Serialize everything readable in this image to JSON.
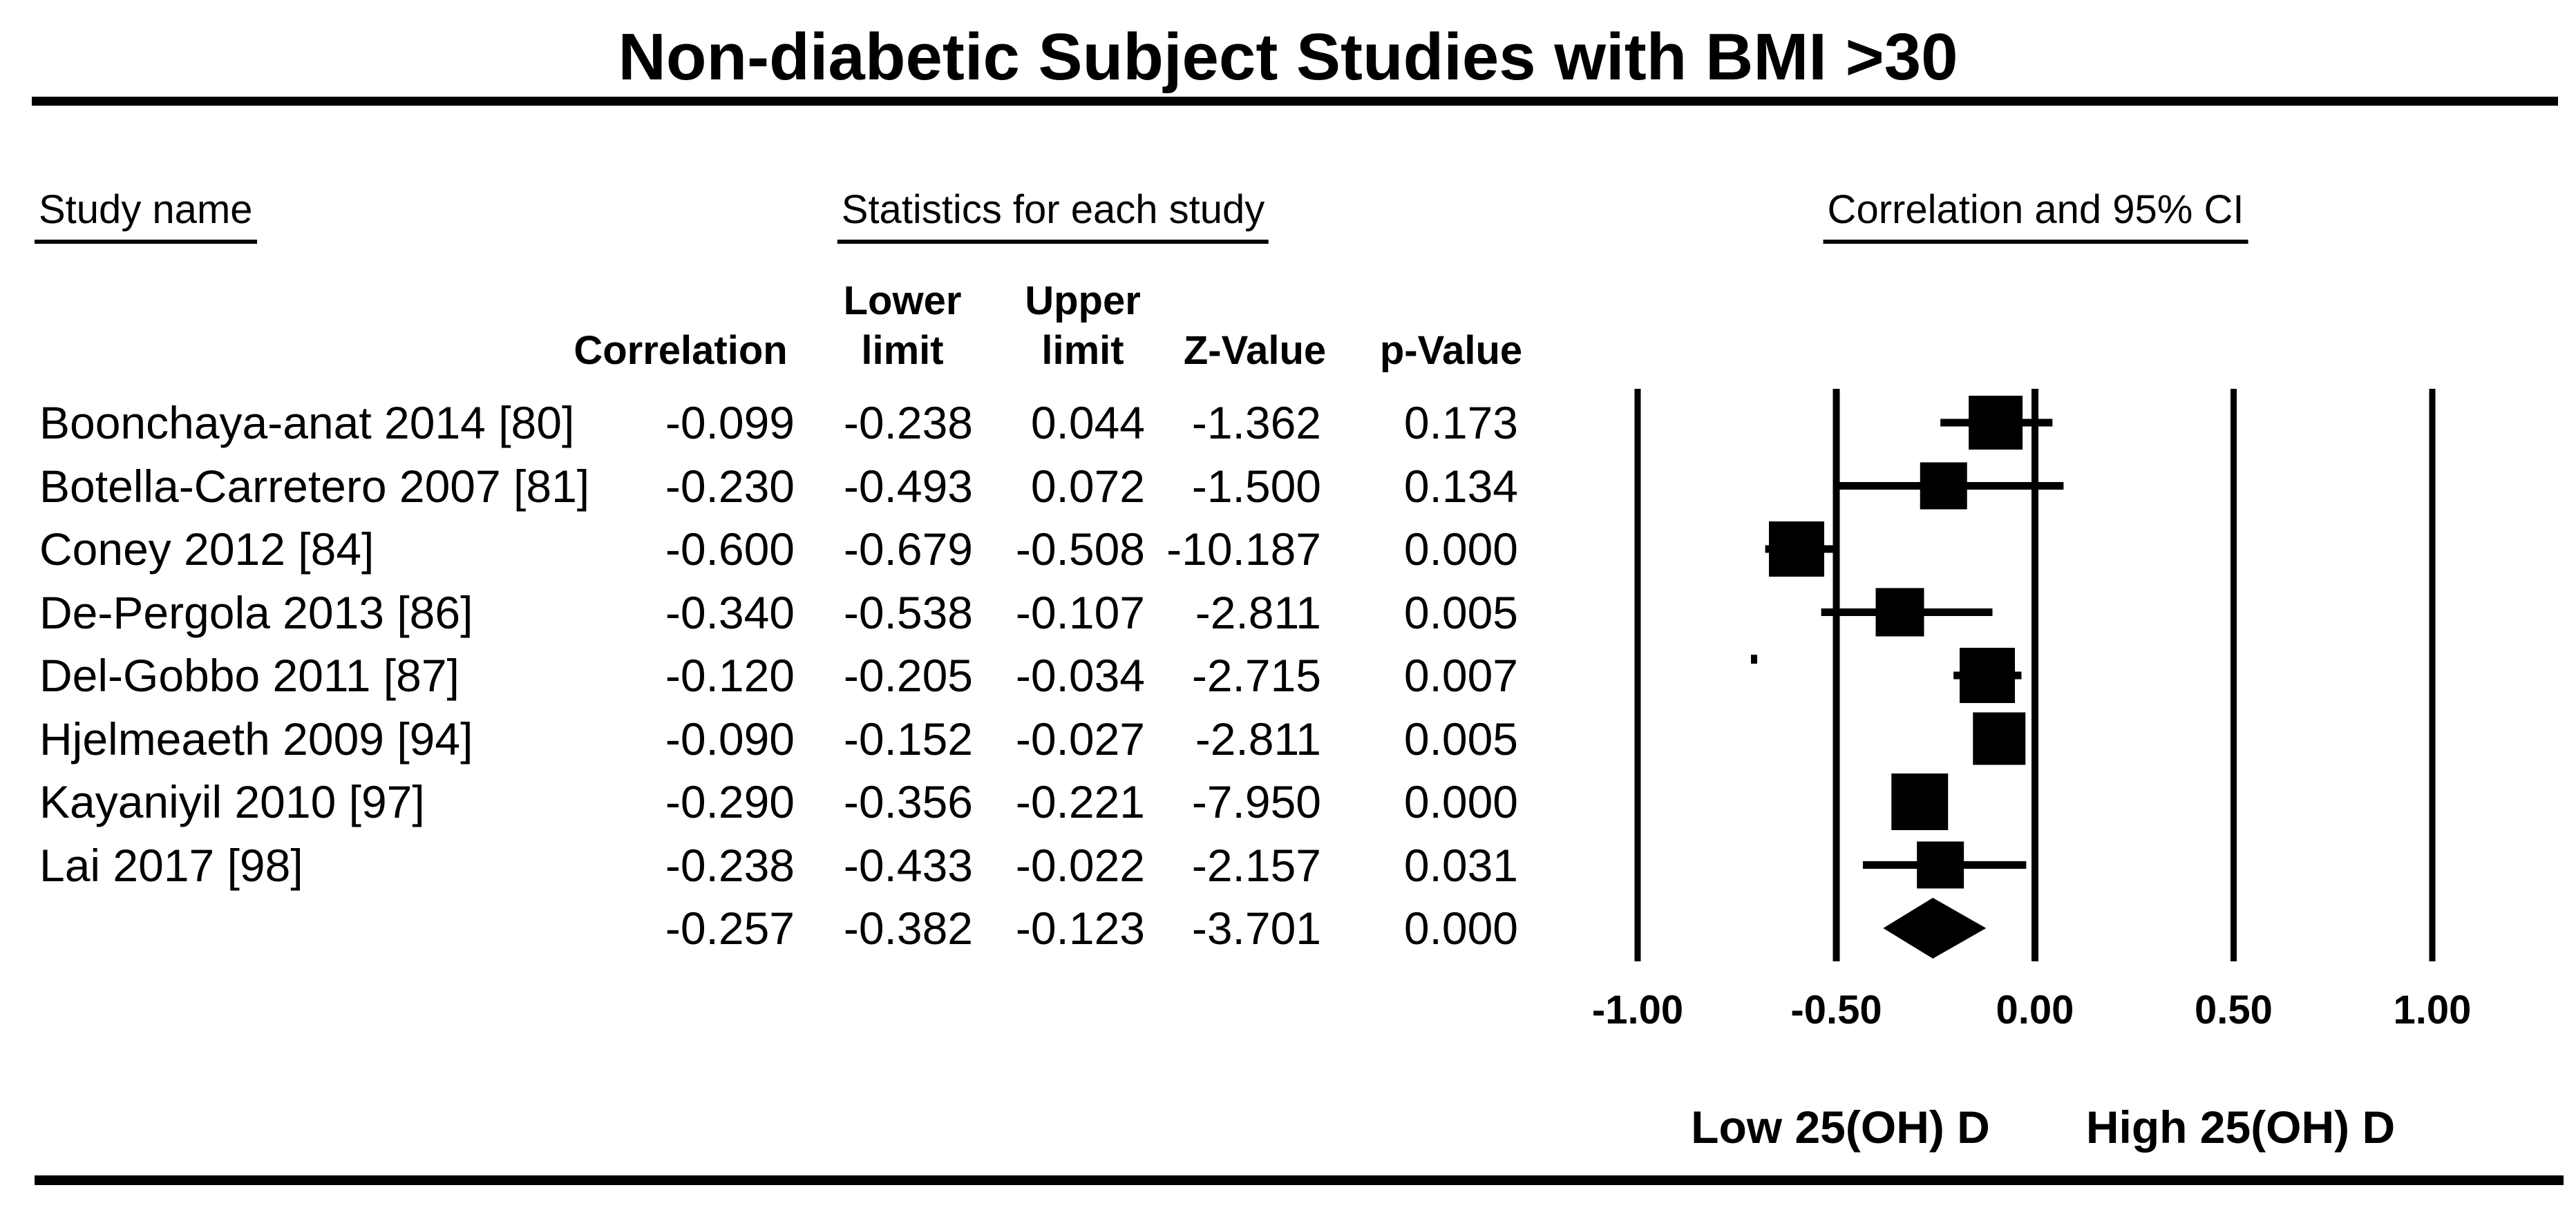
{
  "title": "Non-diabetic Subject Studies with BMI >30",
  "sections": {
    "study_col_header": "Study name",
    "stats_header": "Statistics for each study",
    "plot_header": "Correlation and 95% CI"
  },
  "table": {
    "columns": [
      {
        "id": "correlation",
        "label_top": "",
        "label_bottom": "Correlation"
      },
      {
        "id": "lower",
        "label_top": "Lower",
        "label_bottom": "limit"
      },
      {
        "id": "upper",
        "label_top": "Upper",
        "label_bottom": "limit"
      },
      {
        "id": "z",
        "label_top": "",
        "label_bottom": "Z-Value"
      },
      {
        "id": "p",
        "label_top": "",
        "label_bottom": "p-Value"
      }
    ]
  },
  "chart_data": {
    "type": "forest",
    "title": "Non-diabetic Subject Studies with BMI >30",
    "x_axis_label_left": "Low 25(OH) D",
    "x_axis_label_right": "High 25(OH) D",
    "x_ticks": [
      "-1.00",
      "-0.50",
      "0.00",
      "0.50",
      "1.00"
    ],
    "x_tick_values": [
      -1.0,
      -0.5,
      0.0,
      0.5,
      1.0
    ],
    "xlim": [
      -1.0,
      1.0
    ],
    "grid": "vertical-reference-lines",
    "studies": [
      {
        "name": "Boonchaya-anat 2014 [80]",
        "correlation": -0.099,
        "lower": -0.238,
        "upper": 0.044,
        "z": -1.362,
        "p": 0.173,
        "box_size": 78
      },
      {
        "name": "Botella-Carretero 2007 [81]",
        "correlation": -0.23,
        "lower": -0.493,
        "upper": 0.072,
        "z": -1.5,
        "p": 0.134,
        "box_size": 68
      },
      {
        "name": "Coney 2012 [84]",
        "correlation": -0.6,
        "lower": -0.679,
        "upper": -0.508,
        "z": -10.187,
        "p": 0.0,
        "box_size": 80
      },
      {
        "name": "De-Pergola 2013 [86]",
        "correlation": -0.34,
        "lower": -0.538,
        "upper": -0.107,
        "z": -2.811,
        "p": 0.005,
        "box_size": 70
      },
      {
        "name": "Del-Gobbo 2011 [87]",
        "correlation": -0.12,
        "lower": -0.205,
        "upper": -0.034,
        "z": -2.715,
        "p": 0.007,
        "box_size": 80
      },
      {
        "name": "Hjelmeaeth 2009 [94]",
        "correlation": -0.09,
        "lower": -0.152,
        "upper": -0.027,
        "z": -2.811,
        "p": 0.005,
        "box_size": 76
      },
      {
        "name": "Kayaniyil 2010 [97]",
        "correlation": -0.29,
        "lower": -0.356,
        "upper": -0.221,
        "z": -7.95,
        "p": 0.0,
        "box_size": 82
      },
      {
        "name": "Lai 2017 [98]",
        "correlation": -0.238,
        "lower": -0.433,
        "upper": -0.022,
        "z": -2.157,
        "p": 0.031,
        "box_size": 68
      }
    ],
    "summary": {
      "correlation": -0.257,
      "lower": -0.382,
      "upper": -0.123,
      "z": -3.701,
      "p": 0.0
    }
  },
  "colors": {
    "ink": "#000000",
    "background": "#ffffff"
  }
}
